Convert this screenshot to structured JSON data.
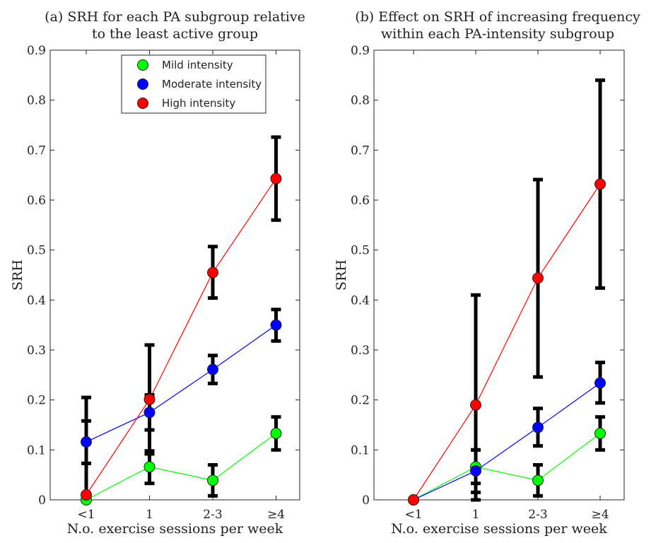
{
  "chart_data": [
    {
      "type": "line",
      "title": "(a) SRH for each PA subgroup relative to the least active group",
      "title_lines": [
        "(a) SRH for each PA subgroup relative",
        "to the least active group"
      ],
      "xlabel": "N.o. exercise sessions per week",
      "ylabel": "SRH",
      "categories": [
        "<1",
        "1",
        "2-3",
        "≥4"
      ],
      "ylim": [
        0,
        0.9
      ],
      "yticks": [
        "0",
        "0.1",
        "0.2",
        "0.3",
        "0.4",
        "0.5",
        "0.6",
        "0.7",
        "0.8",
        "0.9"
      ],
      "grid": false,
      "legend_placement": "top-center",
      "series": [
        {
          "name": "Mild intensity",
          "color": "#00ff00",
          "values": [
            0.0,
            0.066,
            0.039,
            0.133
          ],
          "err_low": [
            0.0,
            0.033,
            0.008,
            0.1
          ],
          "err_high": [
            0.073,
            0.098,
            0.07,
            0.166
          ]
        },
        {
          "name": "Moderate intensity",
          "color": "#0000ff",
          "values": [
            0.116,
            0.175,
            0.261,
            0.35
          ],
          "err_low": [
            0.073,
            0.14,
            0.233,
            0.318
          ],
          "err_high": [
            0.158,
            0.21,
            0.289,
            0.381
          ]
        },
        {
          "name": "High intensity",
          "color": "#ff0000",
          "values": [
            0.01,
            0.201,
            0.455,
            0.643
          ],
          "err_low": [
            0.0,
            0.092,
            0.404,
            0.56
          ],
          "err_high": [
            0.205,
            0.31,
            0.507,
            0.726
          ]
        }
      ]
    },
    {
      "type": "line",
      "title": "(b) Effect on SRH of increasing frequency within each PA-intensity subgroup",
      "title_lines": [
        "(b) Effect on SRH of increasing frequency",
        "within each PA-intensity subgroup"
      ],
      "xlabel": "N.o. exercise sessions per week",
      "ylabel": "SRH",
      "categories": [
        "<1",
        "1",
        "2-3",
        "≥4"
      ],
      "ylim": [
        0,
        0.9
      ],
      "yticks": [
        "0",
        "0.1",
        "0.2",
        "0.3",
        "0.4",
        "0.5",
        "0.6",
        "0.7",
        "0.8",
        "0.9"
      ],
      "grid": false,
      "series": [
        {
          "color": "#00ff00",
          "values": [
            0.0,
            0.066,
            0.039,
            0.133
          ],
          "err_low": [
            0.0,
            0.033,
            0.008,
            0.1
          ],
          "err_high": [
            0.0,
            0.1,
            0.07,
            0.166
          ]
        },
        {
          "color": "#0000ff",
          "values": [
            0.0,
            0.058,
            0.145,
            0.234
          ],
          "err_low": [
            0.0,
            0.015,
            0.108,
            0.194
          ],
          "err_high": [
            0.0,
            0.1,
            0.183,
            0.275
          ]
        },
        {
          "color": "#ff0000",
          "values": [
            0.0,
            0.19,
            0.444,
            0.632
          ],
          "err_low": [
            0.0,
            0.0,
            0.246,
            0.424
          ],
          "err_high": [
            0.0,
            0.41,
            0.641,
            0.84
          ]
        }
      ]
    }
  ]
}
